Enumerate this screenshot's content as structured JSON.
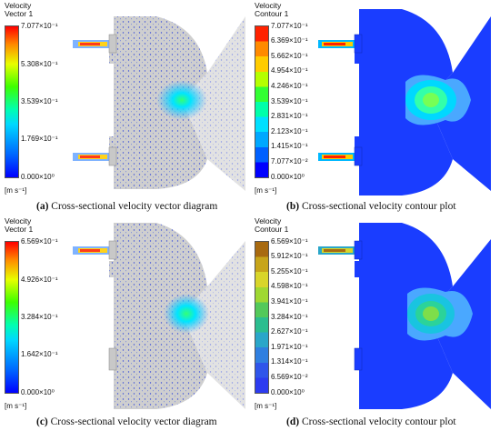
{
  "panels": [
    {
      "title_line1": "Velocity",
      "title_line2": "Vector 1",
      "kind": "vector",
      "ticks": [
        "7.077×10⁻¹",
        "5.308×10⁻¹",
        "3.539×10⁻¹",
        "1.769×10⁻¹",
        "0.000×10⁰"
      ],
      "unit": "[m s⁻¹]",
      "caption_label": "(a)",
      "caption_text": "Cross-sectional velocity vector diagram"
    },
    {
      "title_line1": "Velocity",
      "title_line2": "Contour 1",
      "kind": "contour",
      "ticks": [
        "7.077×10⁻¹",
        "6.369×10⁻¹",
        "5.662×10⁻¹",
        "4.954×10⁻¹",
        "4.246×10⁻¹",
        "3.539×10⁻¹",
        "2.831×10⁻¹",
        "2.123×10⁻¹",
        "1.415×10⁻¹",
        "7.077×10⁻²",
        "0.000×10⁰"
      ],
      "unit": "[m s⁻¹]",
      "caption_label": "(b)",
      "caption_text": "Cross-sectional velocity contour plot"
    },
    {
      "title_line1": "Velocity",
      "title_line2": "Vector 1",
      "kind": "vector",
      "ticks": [
        "6.569×10⁻¹",
        "4.926×10⁻¹",
        "3.284×10⁻¹",
        "1.642×10⁻¹",
        "0.000×10⁰"
      ],
      "unit": "[m s⁻¹]",
      "caption_label": "(c)",
      "caption_text": "Cross-sectional velocity vector diagram"
    },
    {
      "title_line1": "Velocity",
      "title_line2": "Contour 1",
      "kind": "contour",
      "ticks": [
        "6.569×10⁻¹",
        "5.912×10⁻¹",
        "5.255×10⁻¹",
        "4.598×10⁻¹",
        "3.941×10⁻¹",
        "3.284×10⁻¹",
        "2.627×10⁻¹",
        "1.971×10⁻¹",
        "1.314×10⁻¹",
        "6.569×10⁻²",
        "0.000×10⁰"
      ],
      "unit": "[m s⁻¹]",
      "caption_label": "(d)",
      "caption_text": "Cross-sectional velocity contour plot"
    }
  ]
}
